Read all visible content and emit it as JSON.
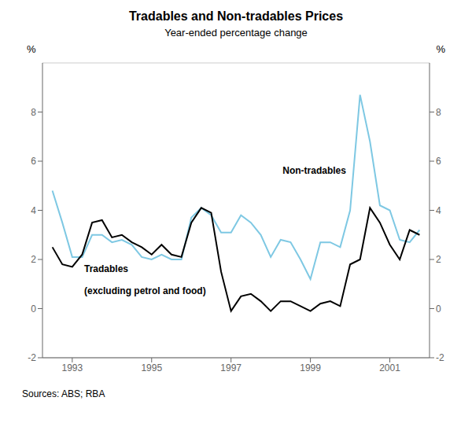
{
  "chart_data": {
    "type": "line",
    "title": "Tradables and Non-tradables Prices",
    "subtitle": "Year-ended percentage change",
    "source": "Sources: ABS; RBA",
    "ylabel": "%",
    "y2label": "%",
    "x": [
      1992.5,
      1992.75,
      1993.0,
      1993.25,
      1993.5,
      1993.75,
      1994.0,
      1994.25,
      1994.5,
      1994.75,
      1995.0,
      1995.25,
      1995.5,
      1995.75,
      1996.0,
      1996.25,
      1996.5,
      1996.75,
      1997.0,
      1997.25,
      1997.5,
      1997.75,
      1998.0,
      1998.25,
      1998.5,
      1998.75,
      1999.0,
      1999.25,
      1999.5,
      1999.75,
      2000.0,
      2000.25,
      2000.5,
      2000.75,
      2001.0,
      2001.25,
      2001.5,
      2001.75
    ],
    "series": [
      {
        "color": "#7ec8e3",
        "values": [
          4.8,
          3.5,
          2.1,
          2.1,
          3.0,
          3.0,
          2.7,
          2.8,
          2.6,
          2.1,
          2.0,
          2.2,
          2.0,
          2.0,
          3.7,
          4.1,
          3.8,
          3.1,
          3.1,
          3.8,
          3.5,
          3.0,
          2.1,
          2.8,
          2.7,
          2.0,
          1.2,
          2.7,
          2.7,
          2.5,
          4.0,
          8.7,
          6.8,
          4.2,
          4.0,
          2.8,
          2.7,
          3.2
        ]
      },
      {
        "color": "#000000",
        "values": [
          2.5,
          1.8,
          1.7,
          2.2,
          3.5,
          3.6,
          2.9,
          3.0,
          2.7,
          2.5,
          2.2,
          2.6,
          2.2,
          2.1,
          3.5,
          4.1,
          3.9,
          1.5,
          -0.1,
          0.5,
          0.6,
          0.3,
          -0.1,
          0.3,
          0.3,
          0.1,
          -0.1,
          0.2,
          0.3,
          0.1,
          1.8,
          2.0,
          4.1,
          3.5,
          2.6,
          2.0,
          3.2,
          3.0
        ]
      }
    ],
    "xlim": [
      1992.25,
      2002.0
    ],
    "xticks": [
      1993,
      1995,
      1997,
      1999,
      2001
    ],
    "ylim": [
      -2,
      10
    ],
    "yticks": [
      -2,
      0,
      2,
      4,
      6,
      8
    ],
    "y2lim": [
      -2,
      10
    ],
    "y2ticks": [
      -2,
      0,
      2,
      4,
      6,
      8
    ],
    "grid": true,
    "annotations": [
      {
        "text": "Non-tradables",
        "x": 1998.3,
        "y": 5.5
      },
      {
        "text": "Tradables",
        "x": 1993.3,
        "y": 1.5
      },
      {
        "text": "(excluding petrol and food)",
        "x": 1993.3,
        "y": 0.6
      }
    ]
  }
}
